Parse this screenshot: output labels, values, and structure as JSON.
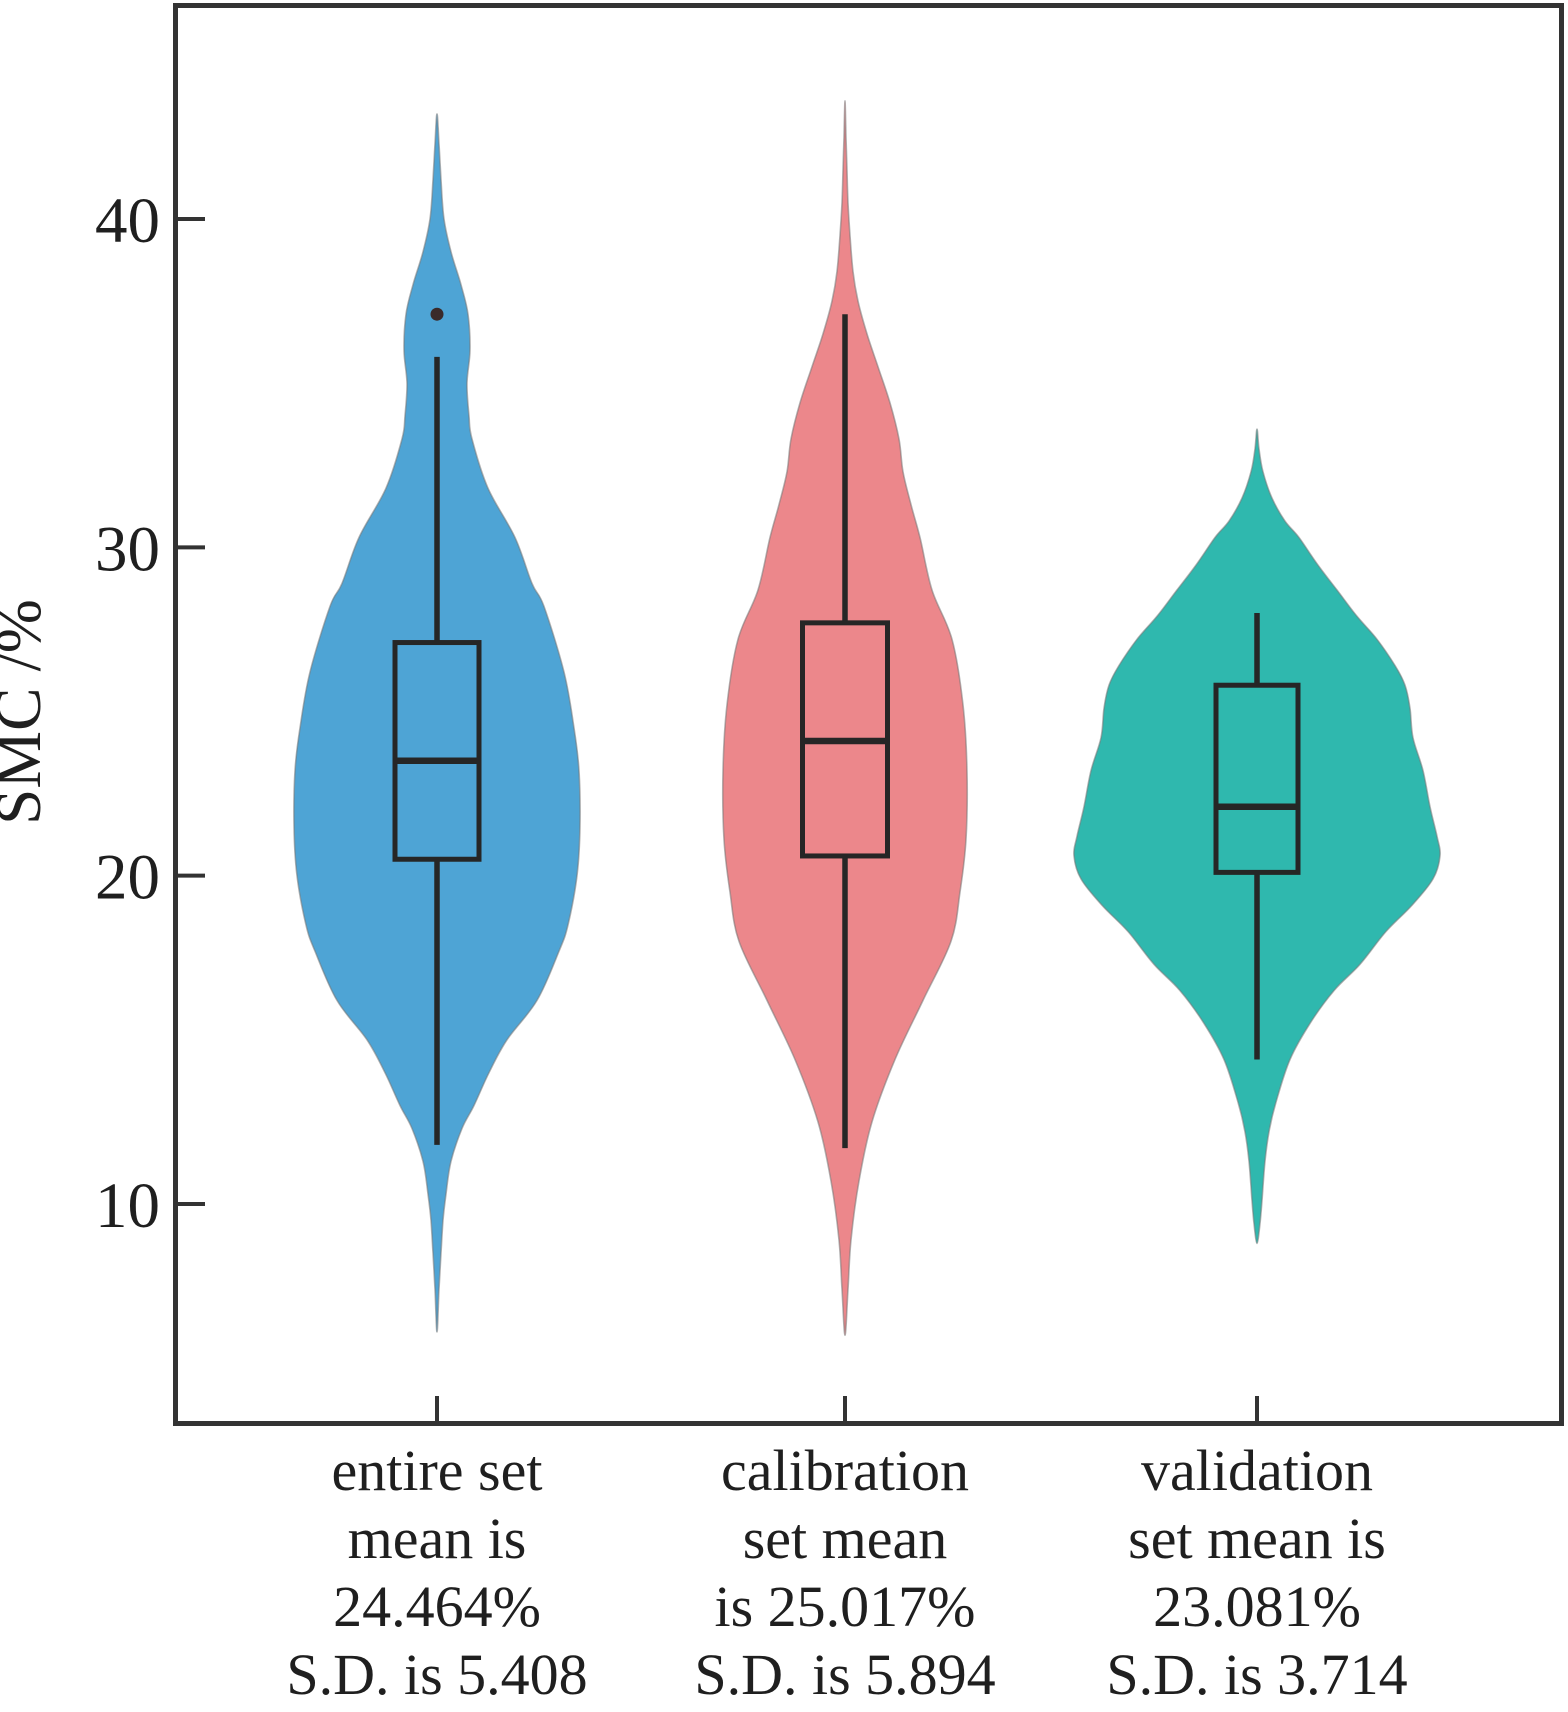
{
  "figure": {
    "background": "#ffffff",
    "border_color": "#333333",
    "text_color": "#1f1f1f",
    "boxplot_line_color": "#262626"
  },
  "chart_data": {
    "type": "violin",
    "title": "",
    "xlabel": "",
    "ylabel": "SMC /%",
    "ylim": [
      3.3,
      46.5
    ],
    "grid": false,
    "yticks": [
      {
        "value": 40,
        "label": "40"
      },
      {
        "value": 30,
        "label": "30"
      },
      {
        "value": 20,
        "label": "20"
      },
      {
        "value": 10,
        "label": "10"
      }
    ],
    "groups": [
      {
        "id": "entire-set",
        "color": "#4ea4d5",
        "label_lines": [
          "entire set",
          "mean is",
          "24.464%",
          "S.D. is 5.408"
        ],
        "mean_pct": 24.464,
        "sd": 5.408,
        "stats": {
          "whisker_low": 11.8,
          "q1": 20.5,
          "median": 23.5,
          "q3": 27.1,
          "whisker_high": 35.8
        },
        "outliers": [
          37.1
        ],
        "profile": [
          [
            43.2,
            0
          ],
          [
            42.3,
            2
          ],
          [
            41.2,
            4
          ],
          [
            40.0,
            7
          ],
          [
            39.0,
            14
          ],
          [
            38.0,
            24
          ],
          [
            37.1,
            31
          ],
          [
            36.0,
            33
          ],
          [
            35.0,
            30
          ],
          [
            34.0,
            32
          ],
          [
            33.3,
            35
          ],
          [
            31.8,
            51
          ],
          [
            30.3,
            78
          ],
          [
            28.9,
            95
          ],
          [
            28.2,
            107
          ],
          [
            26.2,
            127
          ],
          [
            24.5,
            137
          ],
          [
            23.2,
            142
          ],
          [
            21.5,
            143
          ],
          [
            20.0,
            140
          ],
          [
            18.5,
            131
          ],
          [
            17.7,
            122
          ],
          [
            16.2,
            100
          ],
          [
            15.0,
            70
          ],
          [
            14.0,
            52
          ],
          [
            13.0,
            37
          ],
          [
            12.3,
            25
          ],
          [
            11.3,
            14
          ],
          [
            10.3,
            9
          ],
          [
            9.5,
            6
          ],
          [
            8.5,
            4
          ],
          [
            7.4,
            2
          ],
          [
            6.1,
            0
          ]
        ]
      },
      {
        "id": "calibration-set",
        "color": "#ec878b",
        "label_lines": [
          "calibration",
          "set mean",
          "is 25.017%",
          "S.D. is 5.894"
        ],
        "mean_pct": 25.017,
        "sd": 5.894,
        "stats": {
          "whisker_low": 11.7,
          "q1": 20.6,
          "median": 24.1,
          "q3": 27.7,
          "whisker_high": 37.1
        },
        "outliers": [],
        "profile": [
          [
            43.6,
            0
          ],
          [
            42.5,
            1
          ],
          [
            41.5,
            2
          ],
          [
            40.5,
            3
          ],
          [
            39.5,
            5
          ],
          [
            38.4,
            8
          ],
          [
            37.5,
            13
          ],
          [
            36.5,
            22
          ],
          [
            35.5,
            33
          ],
          [
            34.4,
            45
          ],
          [
            33.3,
            54
          ],
          [
            32.3,
            58
          ],
          [
            31.3,
            66
          ],
          [
            30.3,
            75
          ],
          [
            28.7,
            87
          ],
          [
            27.2,
            107
          ],
          [
            25.2,
            118
          ],
          [
            23.2,
            122
          ],
          [
            21.1,
            121
          ],
          [
            19.5,
            115
          ],
          [
            18.0,
            106
          ],
          [
            16.2,
            78
          ],
          [
            14.4,
            50
          ],
          [
            12.5,
            27
          ],
          [
            10.7,
            14
          ],
          [
            8.9,
            6
          ],
          [
            7.4,
            3
          ],
          [
            6.0,
            0
          ]
        ]
      },
      {
        "id": "validation-set",
        "color": "#2fb8ae",
        "label_lines": [
          "validation",
          "set mean is",
          "23.081%",
          "S.D. is 3.714"
        ],
        "mean_pct": 23.081,
        "sd": 3.714,
        "stats": {
          "whisker_low": 14.4,
          "q1": 20.1,
          "median": 22.1,
          "q3": 25.8,
          "whisker_high": 28.0
        },
        "outliers": [],
        "profile": [
          [
            33.6,
            0
          ],
          [
            33.0,
            2
          ],
          [
            32.3,
            6
          ],
          [
            31.5,
            15
          ],
          [
            30.8,
            28
          ],
          [
            30.3,
            42
          ],
          [
            29.5,
            60
          ],
          [
            28.7,
            80
          ],
          [
            27.9,
            100
          ],
          [
            27.2,
            120
          ],
          [
            26.4,
            138
          ],
          [
            25.8,
            148
          ],
          [
            25.1,
            153
          ],
          [
            24.2,
            156
          ],
          [
            23.2,
            166
          ],
          [
            22.1,
            173
          ],
          [
            21.2,
            180
          ],
          [
            20.6,
            183
          ],
          [
            19.9,
            176
          ],
          [
            19.1,
            155
          ],
          [
            18.3,
            129
          ],
          [
            17.3,
            103
          ],
          [
            16.5,
            77
          ],
          [
            15.5,
            53
          ],
          [
            14.4,
            33
          ],
          [
            13.1,
            19
          ],
          [
            12.2,
            12
          ],
          [
            11.3,
            8
          ],
          [
            10.1,
            5
          ],
          [
            9.4,
            3
          ],
          [
            8.8,
            0
          ]
        ]
      }
    ]
  }
}
